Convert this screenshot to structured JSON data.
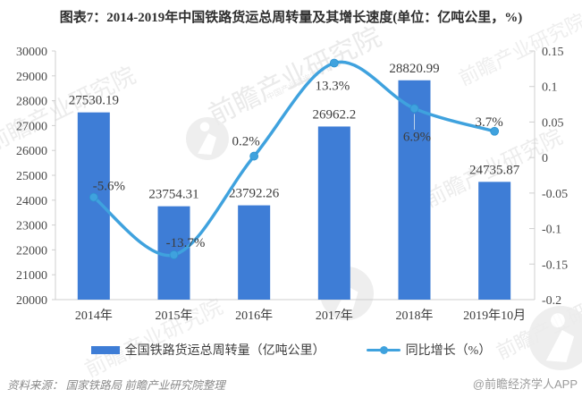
{
  "title": "图表7：2014-2019年中国铁路货运总周转量及其增长速度(单位：亿吨公里，%)",
  "chart_data": {
    "type": "bar+line combo",
    "categories": [
      "2014年",
      "2015年",
      "2016年",
      "2017年",
      "2018年",
      "2019年10月"
    ],
    "series": [
      {
        "name": "全国铁路货运总周转量（亿吨公里）",
        "type": "bar",
        "axis": "left",
        "values": [
          27530.19,
          23754.31,
          23792.26,
          26962.2,
          28820.99,
          24735.87
        ],
        "labels": [
          "27530.19",
          "23754.31",
          "23792.26",
          "26962.2",
          "28820.99",
          "24735.87"
        ]
      },
      {
        "name": "同比增长（%）",
        "type": "line",
        "axis": "right",
        "values": [
          -0.056,
          -0.137,
          0.002,
          0.133,
          0.069,
          0.037
        ],
        "labels": [
          "-5.6%",
          "-13.7%",
          "0.2%",
          "13.3%",
          "6.9%",
          "3.7%"
        ]
      }
    ],
    "left_axis": {
      "min": 20000,
      "max": 30000,
      "step": 1000,
      "ticks": [
        "30000",
        "29000",
        "28000",
        "27000",
        "26000",
        "25000",
        "24000",
        "23000",
        "22000",
        "21000",
        "20000"
      ]
    },
    "right_axis": {
      "min": -0.2,
      "max": 0.15,
      "step": 0.05,
      "ticks": [
        "0.15",
        "0.1",
        "0.05",
        "0",
        "-0.05",
        "-0.1",
        "-0.15",
        "-0.2"
      ]
    },
    "grid": false,
    "legend_position": "bottom"
  },
  "legend": {
    "bar_label": "全国铁路货运总周转量（亿吨公里）",
    "line_label": "同比增长（%）"
  },
  "footer": {
    "source": "资料来源： 国家铁路局 前瞻产业研究院整理",
    "credit": "@前瞻经济学人APP"
  },
  "watermark": {
    "text": "前瞻产业研究院",
    "subtext": "中国产业咨询领导者"
  },
  "colors": {
    "bar": "#3E7DD6",
    "line": "#3FA2DE",
    "axis": "#CFCFCF",
    "text": "#3D3D3D",
    "title": "#2E2E2E",
    "footer": "#8A8A8A",
    "leader": "#BDD3EA",
    "watermark": "#E8E8E8"
  }
}
